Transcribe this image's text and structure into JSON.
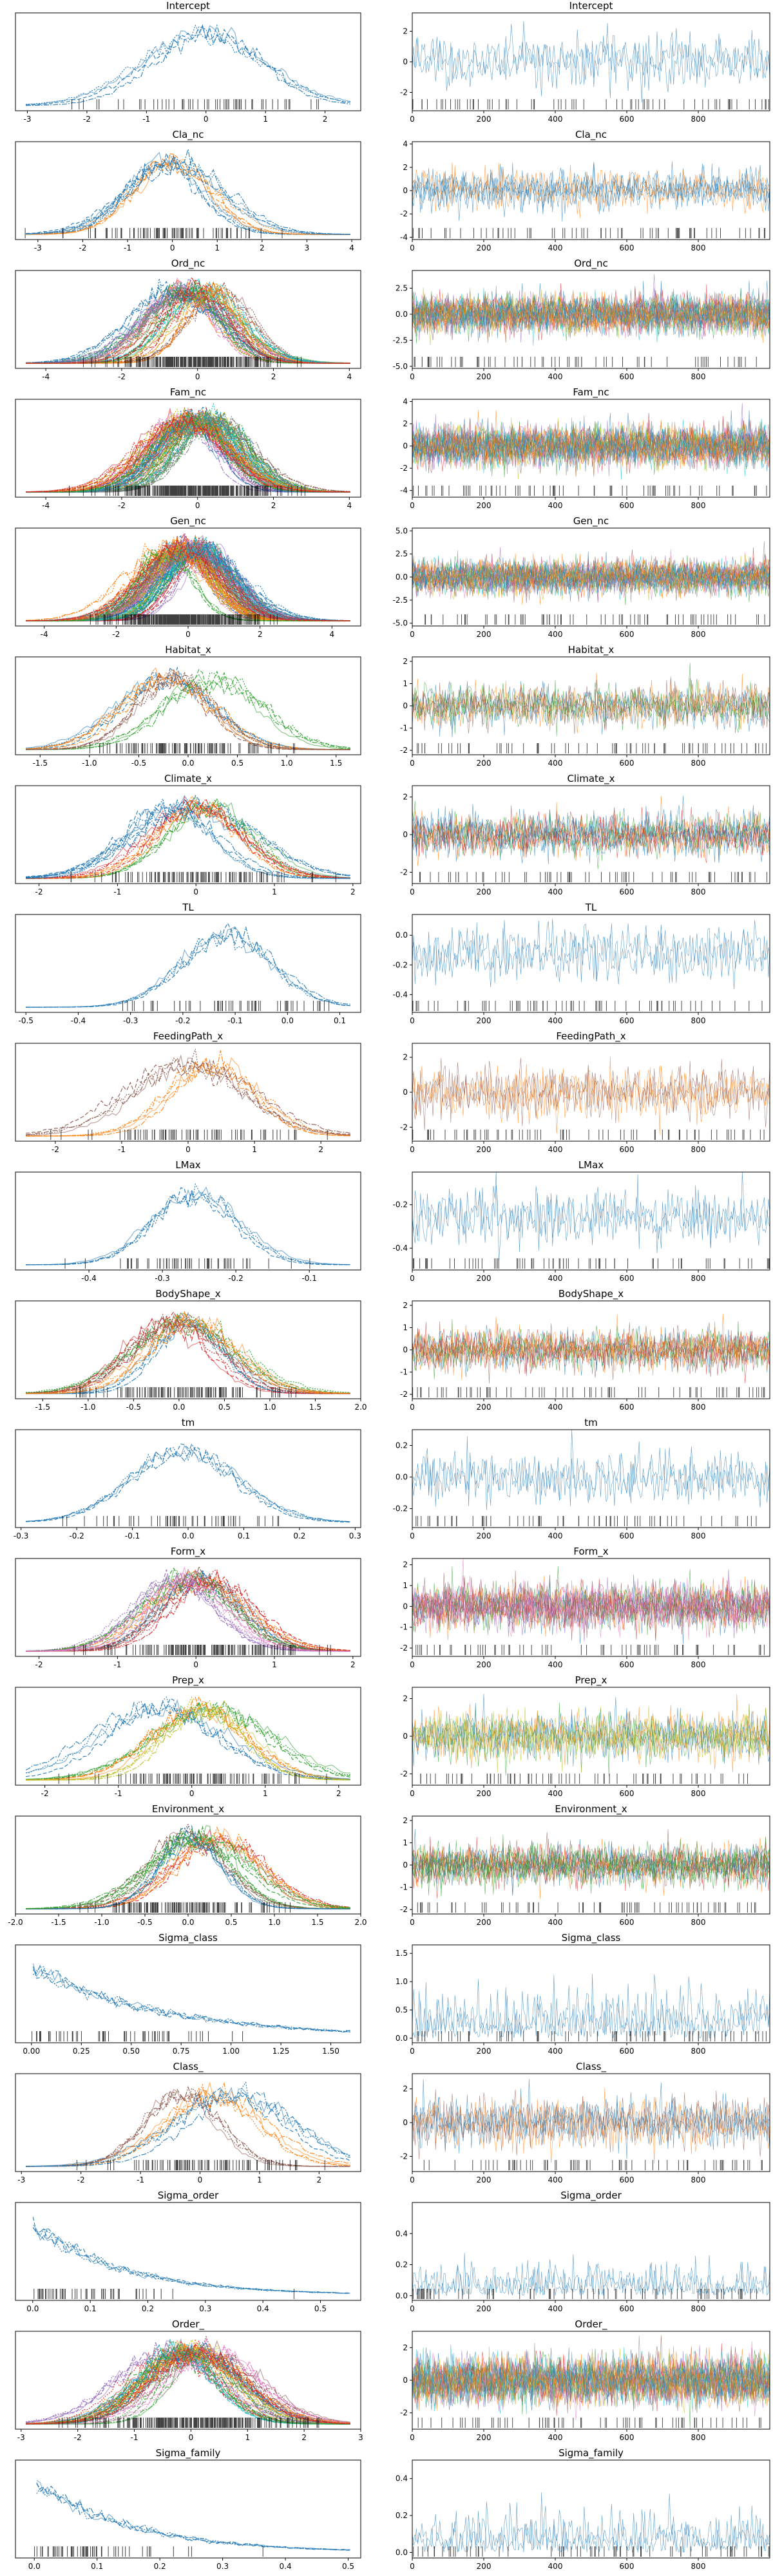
{
  "figure": {
    "type": "arviz-traceplot",
    "rows": 20,
    "columns": 2
  },
  "colors": {
    "blue": "#1f77b4",
    "orange": "#ff7f0e",
    "green": "#2ca02c",
    "red": "#d62728",
    "purple": "#9467bd",
    "brown": "#8c564b",
    "pink": "#e377c2",
    "olive": "#bcbd22",
    "teal": "#17becf"
  },
  "chart_data": [
    {
      "name": "Intercept",
      "density_title": "Intercept",
      "trace_title": "Intercept",
      "n_series": 1,
      "palette": [
        "#1f77b4"
      ],
      "mean": 0.05,
      "sd": 0.9,
      "density_xticks": [
        "-3",
        "-2",
        "-1",
        "0",
        "1",
        "2"
      ],
      "density_xlim": [
        -3.2,
        2.6
      ],
      "trace_yticks": [
        "-2",
        "0",
        "2"
      ],
      "trace_ylim": [
        -3.2,
        3.2
      ]
    },
    {
      "name": "Cla_nc",
      "density_title": "Cla_nc",
      "trace_title": "Cla_nc",
      "n_series": 3,
      "palette": [
        "#1f77b4",
        "#ff7f0e"
      ],
      "mean": 0.1,
      "sd": 0.9,
      "density_xticks": [
        "-3",
        "-2",
        "-1",
        "0",
        "1",
        "2",
        "3",
        "4"
      ],
      "density_xlim": [
        -3.5,
        4.2
      ],
      "trace_yticks": [
        "-4",
        "-2",
        "0",
        "2",
        "4"
      ],
      "trace_ylim": [
        -4.2,
        4.2
      ]
    },
    {
      "name": "Ord_nc",
      "density_title": "Ord_nc",
      "trace_title": "Ord_nc",
      "n_series": 14,
      "palette": [
        "#1f77b4",
        "#ff7f0e",
        "#2ca02c",
        "#d62728",
        "#9467bd",
        "#8c564b",
        "#e377c2",
        "#7f7f7f",
        "#bcbd22",
        "#17becf"
      ],
      "mean": 0,
      "sd": 1,
      "density_xticks": [
        "-4",
        "-2",
        "0",
        "2",
        "4"
      ],
      "density_xlim": [
        -4.8,
        4.3
      ],
      "trace_yticks": [
        "-5.0",
        "-2.5",
        "0.0",
        "2.5"
      ],
      "trace_ylim": [
        -5.2,
        4.2
      ]
    },
    {
      "name": "Fam_nc",
      "density_title": "Fam_nc",
      "trace_title": "Fam_nc",
      "n_series": 24,
      "palette": [
        "#1f77b4",
        "#ff7f0e",
        "#2ca02c",
        "#d62728",
        "#9467bd",
        "#8c564b",
        "#e377c2",
        "#7f7f7f",
        "#bcbd22",
        "#17becf"
      ],
      "mean": 0,
      "sd": 1,
      "density_xticks": [
        "-4",
        "-2",
        "0",
        "2",
        "4"
      ],
      "density_xlim": [
        -4.8,
        4.3
      ],
      "trace_yticks": [
        "-4",
        "-2",
        "0",
        "2",
        "4"
      ],
      "trace_ylim": [
        -4.6,
        4.2
      ]
    },
    {
      "name": "Gen_nc",
      "density_title": "Gen_nc",
      "trace_title": "Gen_nc",
      "n_series": 34,
      "palette": [
        "#1f77b4",
        "#ff7f0e",
        "#2ca02c",
        "#d62728",
        "#9467bd",
        "#8c564b",
        "#e377c2",
        "#7f7f7f",
        "#bcbd22",
        "#17becf"
      ],
      "mean": 0,
      "sd": 1,
      "density_xticks": [
        "-4",
        "-2",
        "0",
        "2",
        "4"
      ],
      "density_xlim": [
        -4.8,
        4.8
      ],
      "trace_yticks": [
        "-5.0",
        "-2.5",
        "0.0",
        "2.5",
        "5.0"
      ],
      "trace_ylim": [
        -5.3,
        5.3
      ]
    },
    {
      "name": "Habitat_x",
      "density_title": "Habitat_x",
      "trace_title": "Habitat_x",
      "n_series": 4,
      "palette": [
        "#1f77b4",
        "#ff7f0e",
        "#2ca02c",
        "#8c564b"
      ],
      "mean": 0,
      "sd": 0.5,
      "density_xticks": [
        "-1.5",
        "-1.0",
        "-0.5",
        "0.0",
        "0.5",
        "1.0",
        "1.5"
      ],
      "density_xlim": [
        -1.75,
        1.75
      ],
      "trace_yticks": [
        "-2",
        "-1",
        "0",
        "1",
        "2"
      ],
      "trace_ylim": [
        -2.2,
        2.2
      ]
    },
    {
      "name": "Climate_x",
      "density_title": "Climate_x",
      "trace_title": "Climate_x",
      "n_series": 5,
      "palette": [
        "#1f77b4",
        "#2ca02c",
        "#ff7f0e",
        "#d62728"
      ],
      "mean": 0,
      "sd": 0.6,
      "density_xticks": [
        "-2",
        "-1",
        "0",
        "1",
        "2"
      ],
      "density_xlim": [
        -2.3,
        2.1
      ],
      "trace_yticks": [
        "-2",
        "0",
        "2"
      ],
      "trace_ylim": [
        -2.6,
        2.6
      ]
    },
    {
      "name": "TL",
      "density_title": "TL",
      "trace_title": "TL",
      "n_series": 1,
      "palette": [
        "#1f77b4"
      ],
      "mean": -0.12,
      "sd": 0.1,
      "density_xticks": [
        "-0.5",
        "-0.4",
        "-0.3",
        "-0.2",
        "-0.1",
        "0.0",
        "0.1"
      ],
      "density_xlim": [
        -0.52,
        0.14
      ],
      "trace_yticks": [
        "-0.4",
        "-0.2",
        "0.0"
      ],
      "trace_ylim": [
        -0.52,
        0.14
      ]
    },
    {
      "name": "FeedingPath_x",
      "density_title": "FeedingPath_x",
      "trace_title": "FeedingPath_x",
      "n_series": 2,
      "palette": [
        "#ff7f0e",
        "#8c564b"
      ],
      "mean": 0,
      "sd": 0.8,
      "density_xticks": [
        "-2",
        "-1",
        "0",
        "1",
        "2"
      ],
      "density_xlim": [
        -2.6,
        2.6
      ],
      "trace_yticks": [
        "-2",
        "0",
        "2"
      ],
      "trace_ylim": [
        -2.8,
        2.8
      ]
    },
    {
      "name": "LMax",
      "density_title": "LMax",
      "trace_title": "LMax",
      "n_series": 1,
      "palette": [
        "#1f77b4"
      ],
      "mean": -0.26,
      "sd": 0.07,
      "density_xticks": [
        "-0.4",
        "-0.3",
        "-0.2",
        "-0.1"
      ],
      "density_xlim": [
        -0.5,
        -0.03
      ],
      "trace_yticks": [
        "-0.4",
        "-0.2"
      ],
      "trace_ylim": [
        -0.5,
        -0.05
      ]
    },
    {
      "name": "BodyShape_x",
      "density_title": "BodyShape_x",
      "trace_title": "BodyShape_x",
      "n_series": 5,
      "palette": [
        "#1f77b4",
        "#2ca02c",
        "#d62728",
        "#8c564b",
        "#ff7f0e"
      ],
      "mean": 0,
      "sd": 0.5,
      "density_xticks": [
        "-1.5",
        "-1.0",
        "-0.5",
        "0.0",
        "0.5",
        "1.0",
        "1.5",
        "2.0"
      ],
      "density_xlim": [
        -1.8,
        2.0
      ],
      "trace_yticks": [
        "-2",
        "-1",
        "0",
        "1",
        "2"
      ],
      "trace_ylim": [
        -2.2,
        2.2
      ]
    },
    {
      "name": "tm",
      "density_title": "tm",
      "trace_title": "tm",
      "n_series": 1,
      "palette": [
        "#1f77b4"
      ],
      "mean": 0,
      "sd": 0.09,
      "density_xticks": [
        "-0.3",
        "-0.2",
        "-0.1",
        "0.0",
        "0.1",
        "0.2",
        "0.3"
      ],
      "density_xlim": [
        -0.31,
        0.31
      ],
      "trace_yticks": [
        "-0.2",
        "0.0",
        "0.2"
      ],
      "trace_ylim": [
        -0.32,
        0.3
      ]
    },
    {
      "name": "Form_x",
      "density_title": "Form_x",
      "trace_title": "Form_x",
      "n_series": 7,
      "palette": [
        "#1f77b4",
        "#ff7f0e",
        "#2ca02c",
        "#d62728",
        "#9467bd",
        "#8c564b",
        "#e377c2"
      ],
      "mean": 0,
      "sd": 0.6,
      "density_xticks": [
        "-2",
        "-1",
        "0",
        "1",
        "2"
      ],
      "density_xlim": [
        -2.3,
        2.1
      ],
      "trace_yticks": [
        "-2",
        "-1",
        "0",
        "1",
        "2"
      ],
      "trace_ylim": [
        -2.4,
        2.3
      ]
    },
    {
      "name": "Prep_x",
      "density_title": "Prep_x",
      "trace_title": "Prep_x",
      "n_series": 4,
      "palette": [
        "#2ca02c",
        "#ff7f0e",
        "#1f77b4",
        "#bcbd22"
      ],
      "mean": 0,
      "sd": 0.7,
      "density_xticks": [
        "-2",
        "-1",
        "0",
        "1",
        "2"
      ],
      "density_xlim": [
        -2.4,
        2.3
      ],
      "trace_yticks": [
        "-2",
        "0",
        "2"
      ],
      "trace_ylim": [
        -2.6,
        2.6
      ]
    },
    {
      "name": "Environment_x",
      "density_title": "Environment_x",
      "trace_title": "Environment_x",
      "n_series": 6,
      "palette": [
        "#2ca02c",
        "#d62728",
        "#ff7f0e",
        "#8c564b",
        "#1f77b4"
      ],
      "mean": 0,
      "sd": 0.5,
      "density_xticks": [
        "-2.0",
        "-1.5",
        "-1.0",
        "-0.5",
        "0.0",
        "0.5",
        "1.0",
        "1.5",
        "2.0"
      ],
      "density_xlim": [
        -2.0,
        2.0
      ],
      "trace_yticks": [
        "-2",
        "-1",
        "0",
        "1",
        "2"
      ],
      "trace_ylim": [
        -2.2,
        2.2
      ]
    },
    {
      "name": "Sigma_class",
      "density_title": "Sigma_class",
      "trace_title": "Sigma_class",
      "n_series": 1,
      "palette": [
        "#1f77b4"
      ],
      "mean": 0,
      "sd": 0.5,
      "positive": true,
      "density_xticks": [
        "0.00",
        "0.25",
        "0.50",
        "0.75",
        "1.00",
        "1.25",
        "1.50"
      ],
      "density_xlim": [
        -0.08,
        1.65
      ],
      "trace_yticks": [
        "0.0",
        "0.5",
        "1.0",
        "1.5"
      ],
      "trace_ylim": [
        -0.08,
        1.65
      ]
    },
    {
      "name": "Class_",
      "density_title": "Class_",
      "trace_title": "Class_",
      "n_series": 3,
      "palette": [
        "#ff7f0e",
        "#8c564b",
        "#1f77b4"
      ],
      "mean": 0,
      "sd": 0.8,
      "density_xticks": [
        "-3",
        "-2",
        "-1",
        "0",
        "1",
        "2"
      ],
      "density_xlim": [
        -3.1,
        2.7
      ],
      "trace_yticks": [
        "-2",
        "0",
        "2"
      ],
      "trace_ylim": [
        -2.9,
        2.9
      ]
    },
    {
      "name": "Sigma_order",
      "density_title": "Sigma_order",
      "trace_title": "Sigma_order",
      "n_series": 1,
      "palette": [
        "#1f77b4"
      ],
      "mean": 0,
      "sd": 0.12,
      "positive": true,
      "density_xticks": [
        "0.0",
        "0.1",
        "0.2",
        "0.3",
        "0.4",
        "0.5"
      ],
      "density_xlim": [
        -0.03,
        0.57
      ],
      "trace_yticks": [
        "0.0",
        "0.2",
        "0.4"
      ],
      "trace_ylim": [
        -0.03,
        0.6
      ]
    },
    {
      "name": "Order_",
      "density_title": "Order_",
      "trace_title": "Order_",
      "n_series": 14,
      "palette": [
        "#1f77b4",
        "#ff7f0e",
        "#2ca02c",
        "#d62728",
        "#9467bd",
        "#8c564b",
        "#e377c2",
        "#7f7f7f",
        "#bcbd22",
        "#17becf"
      ],
      "mean": 0,
      "sd": 0.8,
      "density_xticks": [
        "-3",
        "-2",
        "-1",
        "0",
        "1",
        "2",
        "3"
      ],
      "density_xlim": [
        -3.1,
        3.0
      ],
      "trace_yticks": [
        "-2",
        "0",
        "2"
      ],
      "trace_ylim": [
        -3.0,
        3.0
      ]
    },
    {
      "name": "Sigma_family",
      "density_title": "Sigma_family",
      "trace_title": "Sigma_family",
      "n_series": 1,
      "palette": [
        "#1f77b4"
      ],
      "mean": 0,
      "sd": 0.12,
      "positive": true,
      "density_xticks": [
        "0.0",
        "0.1",
        "0.2",
        "0.3",
        "0.4",
        "0.5"
      ],
      "density_xlim": [
        -0.03,
        0.52
      ],
      "trace_yticks": [
        "0.0",
        "0.2",
        "0.4"
      ],
      "trace_ylim": [
        -0.03,
        0.5
      ]
    }
  ],
  "trace_xticks": [
    "0",
    "200",
    "400",
    "600",
    "800"
  ],
  "trace_xlim": [
    0,
    1000
  ]
}
